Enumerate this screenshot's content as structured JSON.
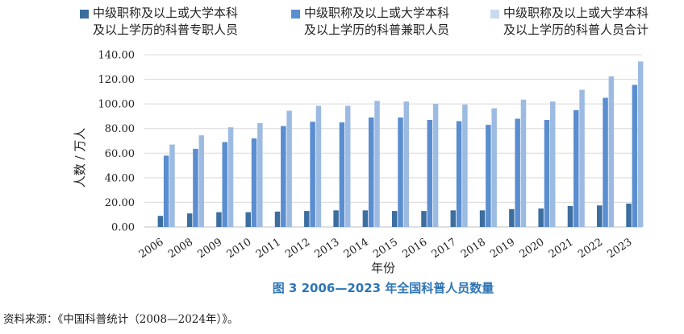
{
  "chart_data": {
    "type": "bar",
    "categories": [
      "2006",
      "2008",
      "2009",
      "2010",
      "2011",
      "2012",
      "2013",
      "2014",
      "2015",
      "2016",
      "2017",
      "2018",
      "2019",
      "2020",
      "2021",
      "2022",
      "2023"
    ],
    "series": [
      {
        "name_lines": [
          "中级职称及以上或大学本科",
          "及以上学历的科普专职人员"
        ],
        "color": "#3c6e9f",
        "values": [
          9.0,
          11.0,
          12.0,
          12.0,
          12.5,
          13.0,
          13.5,
          13.5,
          13.0,
          13.0,
          13.5,
          13.5,
          14.5,
          15.0,
          17.0,
          17.5,
          19.0
        ]
      },
      {
        "name_lines": [
          "中级职称及以上或大学本科",
          "及以上学历的科普兼职人员"
        ],
        "color": "#5b8ed0",
        "values": [
          58.0,
          63.5,
          69.0,
          72.0,
          82.0,
          85.5,
          85.0,
          89.0,
          89.0,
          87.0,
          86.0,
          83.0,
          88.0,
          87.0,
          95.0,
          105.0,
          115.5
        ]
      },
      {
        "name_lines": [
          "中级职称及以上或大学本科",
          "及以上学历的科普人员合计"
        ],
        "color": "#9dbbe2",
        "values": [
          67.0,
          74.5,
          81.0,
          84.5,
          94.5,
          98.5,
          98.5,
          102.5,
          102.0,
          100.0,
          99.5,
          96.5,
          103.5,
          102.0,
          111.5,
          122.5,
          134.5
        ]
      }
    ],
    "yticks": [
      "0.00",
      "20.00",
      "40.00",
      "60.00",
      "80.00",
      "100.00",
      "120.00",
      "140.00"
    ],
    "ylim": [
      0,
      140
    ],
    "ylabel": "人数 / 万人",
    "xlabel": "年份",
    "grid": "horizontal",
    "legend_position": "top"
  },
  "caption": "图 3   2006—2023 年全国科普人员数量",
  "source": "资料来源：《中国科普统计（2008—2024年）》。"
}
